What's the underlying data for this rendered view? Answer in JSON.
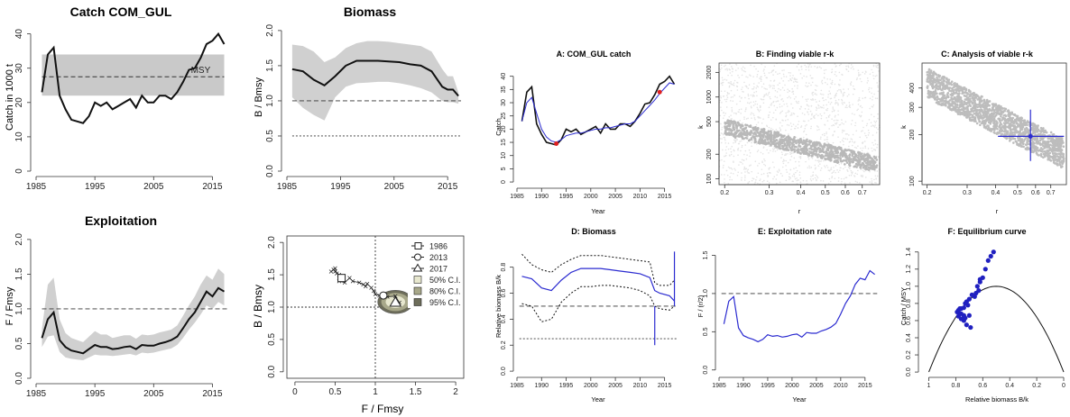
{
  "chart_data": [
    {
      "id": "catch-left",
      "type": "line",
      "title": "Catch COM_GUL",
      "xlabel": "",
      "ylabel": "Catch in 1000 t",
      "xlim": [
        1985,
        2018
      ],
      "ylim": [
        0,
        42
      ],
      "xticks": [
        1985,
        1995,
        2005,
        2015
      ],
      "yticks": [
        0,
        10,
        20,
        30,
        40
      ],
      "msy": {
        "label": "MSY",
        "value": 27.5,
        "lower": 22,
        "upper": 34
      },
      "series": [
        {
          "x": [
            1986,
            1987,
            1988,
            1989,
            1990,
            1991,
            1992,
            1993,
            1994,
            1995,
            1996,
            1997,
            1998,
            1999,
            2000,
            2001,
            2002,
            2003,
            2004,
            2005,
            2006,
            2007,
            2008,
            2009,
            2010,
            2011,
            2012,
            2013,
            2014,
            2015,
            2016,
            2017
          ],
          "y": [
            23,
            34,
            36,
            22,
            18,
            15,
            14.5,
            14,
            16,
            20,
            19,
            20,
            18,
            19,
            20,
            21,
            18.5,
            22,
            20,
            20,
            22,
            22,
            21,
            23,
            26,
            29.5,
            30,
            33,
            37,
            38,
            40,
            37
          ]
        }
      ]
    },
    {
      "id": "biomass-left",
      "type": "area",
      "title": "Biomass",
      "xlabel": "",
      "ylabel": "B / Bmsy",
      "xlim": [
        1985,
        2018
      ],
      "ylim": [
        0,
        2.05
      ],
      "xticks": [
        1985,
        1995,
        2005,
        2015
      ],
      "yticks": [
        0.0,
        0.5,
        1.0,
        1.5,
        2.0
      ],
      "hlines": [
        1.0,
        0.5
      ],
      "series": [
        {
          "x": [
            1986,
            1988,
            1990,
            1992,
            1994,
            1996,
            1998,
            2000,
            2002,
            2004,
            2006,
            2008,
            2010,
            2012,
            2014,
            2015,
            2016,
            2017
          ],
          "y": [
            1.45,
            1.42,
            1.3,
            1.22,
            1.35,
            1.5,
            1.57,
            1.57,
            1.57,
            1.56,
            1.55,
            1.52,
            1.5,
            1.42,
            1.2,
            1.16,
            1.16,
            1.07
          ],
          "lower": [
            1.05,
            0.9,
            0.8,
            0.72,
            1.05,
            1.2,
            1.25,
            1.26,
            1.27,
            1.27,
            1.25,
            1.22,
            1.18,
            1.12,
            1.0,
            0.98,
            0.98,
            0.96
          ],
          "upper": [
            1.8,
            1.78,
            1.7,
            1.55,
            1.62,
            1.75,
            1.82,
            1.85,
            1.85,
            1.84,
            1.82,
            1.8,
            1.78,
            1.7,
            1.45,
            1.35,
            1.35,
            1.12
          ]
        }
      ]
    },
    {
      "id": "exploitation-left",
      "type": "area",
      "title": "Exploitation",
      "xlabel": "",
      "ylabel": "F / Fmsy",
      "xlim": [
        1985,
        2018
      ],
      "ylim": [
        0,
        2.05
      ],
      "xticks": [
        1985,
        1995,
        2005,
        2015
      ],
      "yticks": [
        0.0,
        0.5,
        1.0,
        1.5,
        2.0
      ],
      "hlines": [
        1.0
      ],
      "series": [
        {
          "x": [
            1986,
            1987,
            1988,
            1989,
            1990,
            1991,
            1992,
            1993,
            1994,
            1995,
            1996,
            1997,
            1998,
            1999,
            2000,
            2001,
            2002,
            2003,
            2004,
            2005,
            2006,
            2007,
            2008,
            2009,
            2010,
            2011,
            2012,
            2013,
            2014,
            2015,
            2016,
            2017
          ],
          "y": [
            0.58,
            0.85,
            0.95,
            0.55,
            0.45,
            0.4,
            0.38,
            0.36,
            0.42,
            0.48,
            0.45,
            0.45,
            0.42,
            0.43,
            0.45,
            0.46,
            0.42,
            0.48,
            0.47,
            0.47,
            0.5,
            0.52,
            0.55,
            0.6,
            0.72,
            0.85,
            0.95,
            1.1,
            1.25,
            1.18,
            1.3,
            1.25
          ],
          "lower": [
            0.45,
            0.6,
            0.62,
            0.38,
            0.3,
            0.28,
            0.27,
            0.26,
            0.3,
            0.34,
            0.33,
            0.33,
            0.32,
            0.33,
            0.34,
            0.35,
            0.33,
            0.37,
            0.36,
            0.37,
            0.39,
            0.41,
            0.43,
            0.48,
            0.58,
            0.7,
            0.8,
            0.92,
            1.05,
            1.0,
            1.1,
            1.05
          ],
          "upper": [
            0.72,
            1.35,
            1.45,
            0.85,
            0.65,
            0.58,
            0.55,
            0.52,
            0.6,
            0.68,
            0.63,
            0.63,
            0.58,
            0.6,
            0.62,
            0.62,
            0.57,
            0.63,
            0.62,
            0.63,
            0.66,
            0.68,
            0.7,
            0.76,
            0.9,
            1.05,
            1.18,
            1.35,
            1.48,
            1.42,
            1.58,
            1.5
          ]
        }
      ]
    },
    {
      "id": "kobe",
      "type": "scatter",
      "title": "",
      "xlabel": "F / Fmsy",
      "ylabel": "B / Bmsy",
      "xlim": [
        -0.1,
        2.1
      ],
      "ylim": [
        -0.1,
        2.1
      ],
      "xticks": [
        0.0,
        0.5,
        1.0,
        1.5,
        2.0
      ],
      "yticks": [
        0.0,
        0.5,
        1.0,
        1.5,
        2.0
      ],
      "vline": 1.0,
      "hline": 1.0,
      "legend": [
        "1986",
        "2013",
        "2017",
        "50% C.I.",
        "80% C.I.",
        "95% C.I."
      ],
      "legend_position": "top-right",
      "path": {
        "x": [
          0.58,
          0.55,
          0.5,
          0.48,
          0.45,
          0.5,
          0.52,
          0.6,
          0.55,
          0.62,
          0.68,
          0.72,
          0.8,
          0.85,
          0.88,
          0.9,
          0.95,
          0.98,
          1.0,
          1.05,
          1.15,
          1.25,
          1.3,
          1.25
        ],
        "y": [
          1.45,
          1.5,
          1.55,
          1.58,
          1.55,
          1.6,
          1.52,
          1.48,
          1.4,
          1.38,
          1.45,
          1.4,
          1.38,
          1.35,
          1.32,
          1.36,
          1.3,
          1.25,
          1.2,
          1.18,
          1.16,
          1.17,
          1.07,
          1.07
        ]
      },
      "markers": [
        {
          "label": "1986",
          "x": 0.58,
          "y": 1.45
        },
        {
          "label": "2013",
          "x": 1.1,
          "y": 1.18
        },
        {
          "label": "2017",
          "x": 1.25,
          "y": 1.07
        }
      ],
      "ellipse": {
        "cx": 1.25,
        "cy": 1.08,
        "rx": 0.22,
        "ry": 0.18
      }
    },
    {
      "id": "A",
      "type": "line",
      "title": "A:  COM_GUL catch",
      "xlabel": "Year",
      "ylabel": "Catch",
      "xlim": [
        1985,
        2018
      ],
      "ylim": [
        -1,
        45
      ],
      "xticks": [
        1985,
        1990,
        1995,
        2000,
        2005,
        2010,
        2015
      ],
      "yticks": [
        0,
        5,
        10,
        15,
        20,
        25,
        30,
        35,
        40
      ],
      "series": [
        {
          "x": [
            1986,
            1987,
            1988,
            1989,
            1990,
            1991,
            1992,
            1993,
            1994,
            1995,
            1996,
            1997,
            1998,
            1999,
            2000,
            2001,
            2002,
            2003,
            2004,
            2005,
            2006,
            2007,
            2008,
            2009,
            2010,
            2011,
            2012,
            2013,
            2014,
            2015,
            2016,
            2017
          ],
          "y": [
            23,
            34,
            36,
            22,
            18,
            15,
            14.5,
            14,
            16,
            20,
            19,
            20,
            18,
            19,
            20,
            21,
            18.5,
            22,
            20,
            20,
            22,
            22,
            21,
            23,
            26,
            29.5,
            30,
            33,
            37,
            38,
            40,
            37
          ]
        },
        {
          "x": [
            1986,
            1987,
            1988,
            1989,
            1990,
            1991,
            1992,
            1993,
            1994,
            1995,
            1996,
            1997,
            1998,
            1999,
            2000,
            2001,
            2002,
            2003,
            2004,
            2005,
            2006,
            2007,
            2008,
            2009,
            2010,
            2011,
            2012,
            2013,
            2014,
            2015,
            2016,
            2017
          ],
          "y": [
            23,
            30,
            32,
            26,
            20,
            17,
            15.5,
            15,
            16,
            17.5,
            18,
            18.5,
            18.5,
            19,
            19.5,
            20,
            20,
            20.5,
            20.5,
            21,
            21.5,
            22,
            22,
            23,
            25,
            27,
            29,
            31,
            33.5,
            35.5,
            37.5,
            37
          ]
        }
      ],
      "highlights": [
        {
          "x": 1993,
          "y": 14.5
        },
        {
          "x": 2014,
          "y": 34
        }
      ]
    },
    {
      "id": "B",
      "type": "scatter",
      "title": "B: Finding viable r-k",
      "xlabel": "r",
      "ylabel": "k",
      "xscale": "log",
      "yscale": "log",
      "xlim": [
        0.19,
        0.82
      ],
      "ylim": [
        85,
        2600
      ],
      "xticks": [
        0.2,
        0.3,
        0.4,
        0.5,
        0.6,
        0.7
      ],
      "yticks": [
        100,
        200,
        500,
        1000,
        2000
      ],
      "band": {
        "r": [
          0.2,
          0.8
        ],
        "k_center": [
          430,
          150
        ],
        "k_halfwidth": 1.25
      }
    },
    {
      "id": "C",
      "type": "scatter",
      "title": "C: Analysis of viable r-k",
      "xlabel": "r",
      "ylabel": "k",
      "xscale": "log",
      "yscale": "log",
      "xlim": [
        0.19,
        0.82
      ],
      "ylim": [
        95,
        580
      ],
      "xticks": [
        0.2,
        0.3,
        0.4,
        0.5,
        0.6,
        0.7
      ],
      "yticks": [
        100,
        200,
        300,
        400
      ],
      "band": {
        "r": [
          0.2,
          0.8
        ],
        "k_center": [
          430,
          150
        ],
        "k_halfwidth": 1.25
      },
      "estimate": {
        "r": 0.57,
        "k": 195,
        "r_lo": 0.41,
        "r_hi": 0.8,
        "k_lo": 135,
        "k_hi": 290
      }
    },
    {
      "id": "D",
      "type": "line",
      "title": "D: Biomass",
      "xlabel": "Year",
      "ylabel": "Relative biomass B/k",
      "xlim": [
        1985,
        2018
      ],
      "ylim": [
        -0.02,
        0.95
      ],
      "xticks": [
        1985,
        1990,
        1995,
        2000,
        2005,
        2010,
        2015
      ],
      "yticks": [
        0.0,
        0.2,
        0.4,
        0.6,
        0.8
      ],
      "hlines": [
        0.5,
        0.25
      ],
      "series": [
        {
          "name": "median",
          "x": [
            1986,
            1988,
            1990,
            1992,
            1994,
            1996,
            1998,
            2000,
            2002,
            2004,
            2006,
            2008,
            2010,
            2012,
            2013,
            2014,
            2016,
            2017
          ],
          "y": [
            0.73,
            0.71,
            0.64,
            0.62,
            0.7,
            0.76,
            0.79,
            0.79,
            0.79,
            0.78,
            0.77,
            0.76,
            0.75,
            0.72,
            0.62,
            0.6,
            0.58,
            0.54
          ]
        },
        {
          "name": "upper",
          "x": [
            1986,
            1988,
            1990,
            1992,
            1994,
            1996,
            1998,
            2000,
            2002,
            2004,
            2006,
            2008,
            2010,
            2012,
            2013,
            2014,
            2016,
            2017
          ],
          "y": [
            0.9,
            0.82,
            0.78,
            0.76,
            0.82,
            0.86,
            0.89,
            0.89,
            0.89,
            0.88,
            0.87,
            0.86,
            0.85,
            0.84,
            0.68,
            0.66,
            0.66,
            0.7
          ]
        },
        {
          "name": "lower",
          "x": [
            1986,
            1988,
            1990,
            1992,
            1994,
            1996,
            1998,
            2000,
            2002,
            2004,
            2006,
            2008,
            2010,
            2012,
            2013,
            2014,
            2016,
            2017
          ],
          "y": [
            0.52,
            0.5,
            0.38,
            0.4,
            0.53,
            0.6,
            0.65,
            0.65,
            0.66,
            0.66,
            0.65,
            0.64,
            0.62,
            0.58,
            0.5,
            0.48,
            0.47,
            0.5
          ]
        }
      ],
      "vlines": [
        {
          "x": 2013,
          "y0": 0.2,
          "y1": 0.5
        },
        {
          "x": 2017,
          "y0": 0.5,
          "y1": 0.92
        }
      ]
    },
    {
      "id": "E",
      "type": "line",
      "title": "E: Exploitation rate",
      "xlabel": "Year",
      "ylabel": "F / (r/2)",
      "xlim": [
        1985,
        2018
      ],
      "ylim": [
        -0.05,
        1.6
      ],
      "xticks": [
        1985,
        1990,
        1995,
        2000,
        2005,
        2010,
        2015
      ],
      "yticks": [
        0.0,
        0.5,
        1.0,
        1.5
      ],
      "hlines": [
        1.0
      ],
      "series": [
        {
          "x": [
            1986,
            1987,
            1988,
            1989,
            1990,
            1991,
            1992,
            1993,
            1994,
            1995,
            1996,
            1997,
            1998,
            1999,
            2000,
            2001,
            2002,
            2003,
            2004,
            2005,
            2006,
            2007,
            2008,
            2009,
            2010,
            2011,
            2012,
            2013,
            2014,
            2015,
            2016,
            2017
          ],
          "y": [
            0.6,
            0.9,
            0.96,
            0.55,
            0.45,
            0.42,
            0.4,
            0.37,
            0.4,
            0.46,
            0.44,
            0.45,
            0.43,
            0.44,
            0.46,
            0.47,
            0.43,
            0.49,
            0.48,
            0.48,
            0.51,
            0.53,
            0.56,
            0.61,
            0.73,
            0.87,
            0.97,
            1.12,
            1.2,
            1.18,
            1.3,
            1.25
          ]
        }
      ]
    },
    {
      "id": "F",
      "type": "scatter",
      "title": "F: Equilibrium curve",
      "xlabel": "Relative biomass B/k",
      "ylabel": "Catch / MSY",
      "xlim": [
        1.05,
        -0.02
      ],
      "ylim": [
        -0.02,
        1.45
      ],
      "xticks": [
        1.0,
        0.8,
        0.6,
        0.4,
        0.2,
        0.0
      ],
      "yticks": [
        0.0,
        0.2,
        0.4,
        0.6,
        0.8,
        1.0,
        1.2,
        1.4
      ],
      "points": {
        "x": [
          0.79,
          0.78,
          0.77,
          0.76,
          0.78,
          0.75,
          0.74,
          0.74,
          0.73,
          0.72,
          0.71,
          0.72,
          0.7,
          0.69,
          0.68,
          0.66,
          0.65,
          0.63,
          0.64,
          0.62,
          0.6,
          0.58,
          0.56,
          0.54,
          0.52,
          0.62,
          0.7,
          0.74,
          0.76,
          0.76,
          0.77,
          0.73
        ],
        "y": [
          0.7,
          0.72,
          0.68,
          0.74,
          0.65,
          0.62,
          0.6,
          0.75,
          0.8,
          0.55,
          0.78,
          0.82,
          0.85,
          0.52,
          0.9,
          0.88,
          0.92,
          0.95,
          1.0,
          1.05,
          1.1,
          1.2,
          1.3,
          1.35,
          1.4,
          1.08,
          0.66,
          0.66,
          0.62,
          0.68,
          0.74,
          0.63
        ]
      }
    }
  ]
}
